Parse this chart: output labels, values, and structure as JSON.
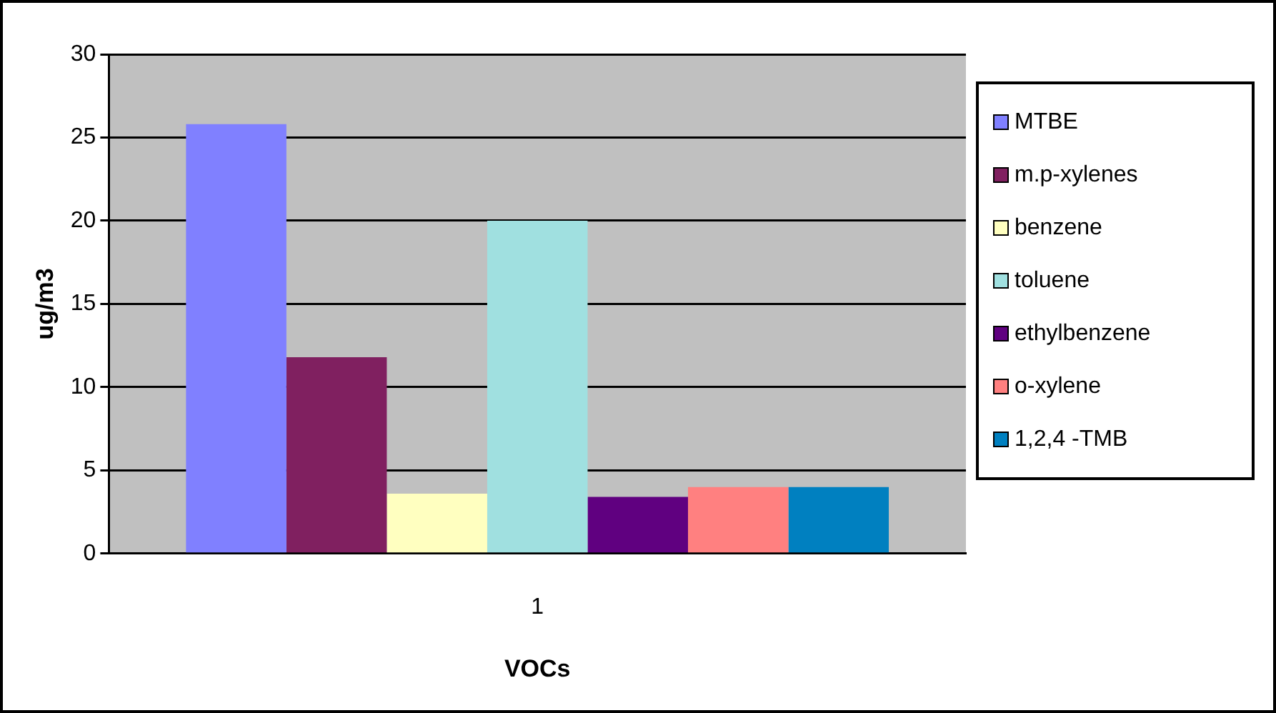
{
  "chart_data": {
    "type": "bar",
    "xlabel": "VOCs",
    "ylabel": "ug/m3",
    "categories": [
      "1"
    ],
    "series": [
      {
        "name": "MTBE",
        "color": "#8080ff",
        "values": [
          25.8
        ]
      },
      {
        "name": "m.p-xylenes",
        "color": "#802060",
        "values": [
          11.8
        ]
      },
      {
        "name": "benzene",
        "color": "#ffffc0",
        "values": [
          3.6
        ]
      },
      {
        "name": "toluene",
        "color": "#a0e0e0",
        "values": [
          20.0
        ]
      },
      {
        "name": "ethylbenzene",
        "color": "#600080",
        "values": [
          3.4
        ]
      },
      {
        "name": "o-xylene",
        "color": "#ff8080",
        "values": [
          4.0
        ]
      },
      {
        "name": "1,2,4 -TMB",
        "color": "#0080c0",
        "values": [
          4.0
        ]
      }
    ],
    "ylim": [
      0,
      30
    ],
    "yticks": [
      0,
      5,
      10,
      15,
      20,
      25,
      30
    ],
    "grid": "y",
    "legend": "right"
  }
}
